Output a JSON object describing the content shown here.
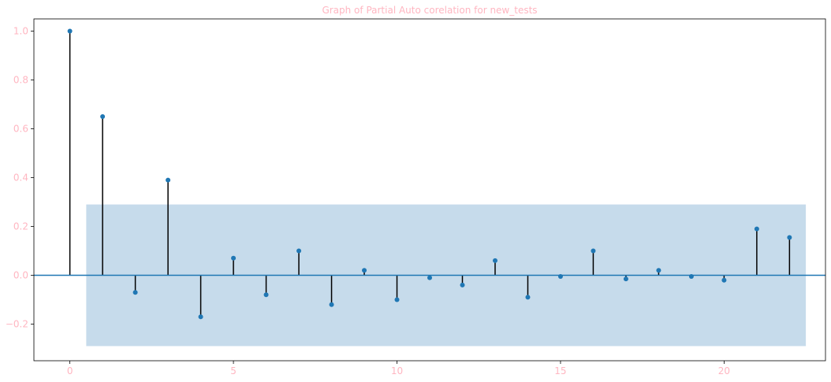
{
  "chart_data": {
    "type": "stem",
    "title": "Graph of Partial Auto corelation for new_tests",
    "xlabel": "",
    "ylabel": "",
    "xlim": [
      -1.1,
      23.1
    ],
    "ylim": [
      -0.35,
      1.05
    ],
    "x_ticks": [
      0,
      5,
      10,
      15,
      20
    ],
    "x_tick_labels": [
      "0",
      "5",
      "10",
      "15",
      "20"
    ],
    "y_ticks": [
      -0.2,
      0.0,
      0.2,
      0.4,
      0.6,
      0.8,
      1.0
    ],
    "y_tick_labels": [
      "−0.2",
      "0.0",
      "0.2",
      "0.4",
      "0.6",
      "0.8",
      "1.0"
    ],
    "lags": [
      0,
      1,
      2,
      3,
      4,
      5,
      6,
      7,
      8,
      9,
      10,
      11,
      12,
      13,
      14,
      15,
      16,
      17,
      18,
      19,
      20,
      21,
      22
    ],
    "values": [
      1.0,
      0.65,
      -0.07,
      0.39,
      -0.17,
      0.07,
      -0.08,
      0.1,
      -0.12,
      0.02,
      -0.1,
      -0.01,
      -0.04,
      0.06,
      -0.09,
      -0.005,
      0.1,
      -0.015,
      0.02,
      -0.005,
      -0.02,
      0.19,
      0.155
    ],
    "confidence_band": {
      "x_range": [
        0.5,
        22.5
      ],
      "lower": -0.29,
      "upper": 0.29
    },
    "grid": false,
    "colors": {
      "marker": "#1f77b4",
      "stem": "#000000",
      "baseline": "#1f77b4",
      "band": "#c6dbeb",
      "text": "#ffb6c1",
      "axes": "#000000"
    }
  }
}
